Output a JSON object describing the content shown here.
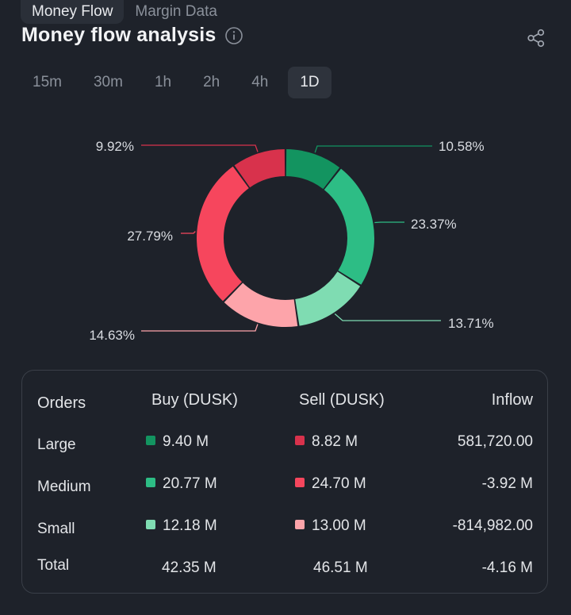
{
  "top_tabs": [
    {
      "label": "Money Flow",
      "active": true
    },
    {
      "label": "Margin Data",
      "active": false
    }
  ],
  "header": {
    "title": "Money flow analysis",
    "info_icon": "info-icon",
    "share_icon": "share-icon"
  },
  "intervals": {
    "items": [
      "15m",
      "30m",
      "1h",
      "2h",
      "4h",
      "1D"
    ],
    "selected": "1D"
  },
  "chart_data": {
    "type": "pie",
    "subtype": "donut",
    "categories": [
      "Buy Large",
      "Buy Medium",
      "Buy Small",
      "Sell Small",
      "Sell Medium",
      "Sell Large"
    ],
    "values": [
      10.58,
      23.37,
      13.71,
      14.63,
      27.79,
      9.92
    ],
    "labels": [
      "10.58%",
      "23.37%",
      "13.71%",
      "14.63%",
      "27.79%",
      "9.92%"
    ],
    "colors": [
      "#139460",
      "#2dbd85",
      "#7fdcb2",
      "#fda4aa",
      "#f6465d",
      "#d8324c"
    ]
  },
  "table": {
    "headers": {
      "orders": "Orders",
      "buy": "Buy (DUSK)",
      "sell": "Sell (DUSK)",
      "inflow": "Inflow"
    },
    "rows": [
      {
        "label": "Large",
        "buy": "9.40 M",
        "sell": "8.82 M",
        "inflow": "581,720.00",
        "buy_color": "#139460",
        "sell_color": "#d8324c"
      },
      {
        "label": "Medium",
        "buy": "20.77 M",
        "sell": "24.70 M",
        "inflow": "-3.92 M",
        "buy_color": "#2dbd85",
        "sell_color": "#f6465d"
      },
      {
        "label": "Small",
        "buy": "12.18 M",
        "sell": "13.00 M",
        "inflow": "-814,982.00",
        "buy_color": "#7fdcb2",
        "sell_color": "#fda4aa"
      }
    ],
    "total": {
      "label": "Total",
      "buy": "42.35 M",
      "sell": "46.51 M",
      "inflow": "-4.16 M"
    }
  }
}
